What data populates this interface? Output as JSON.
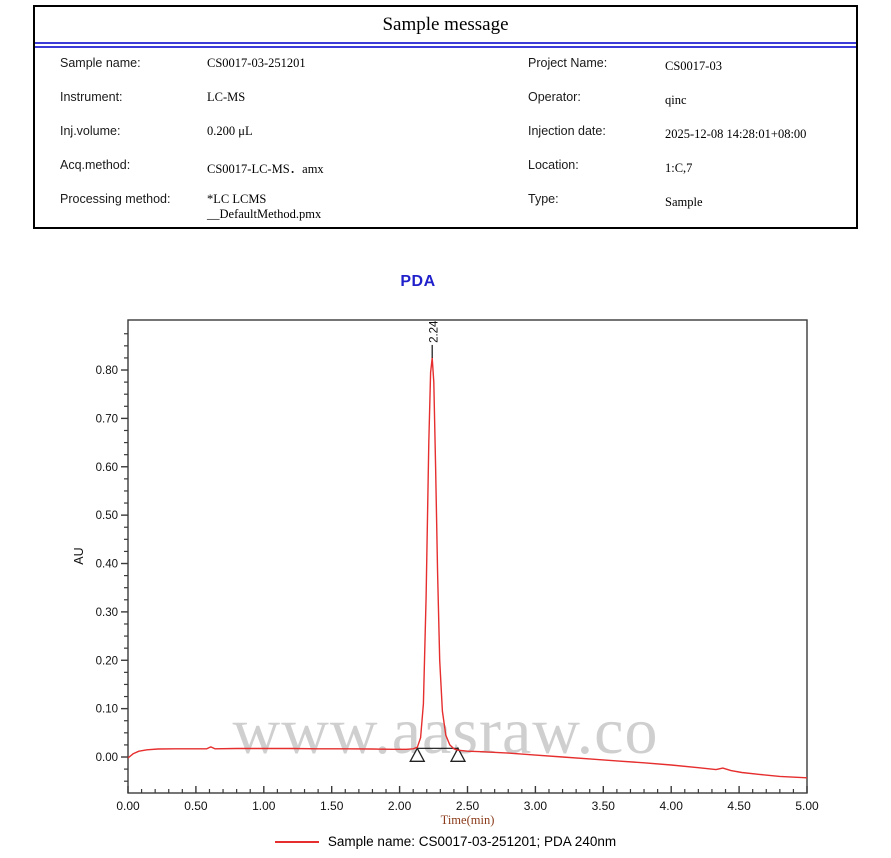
{
  "header_table": {
    "title": "Sample message",
    "rows": [
      {
        "left_label": "Sample name:",
        "left_value": "CS0017-03-251201",
        "right_label": "Project Name:",
        "right_value": "CS0017-03"
      },
      {
        "left_label": "Instrument:",
        "left_value": "LC-MS",
        "right_label": "Operator:",
        "right_value": "qinc"
      },
      {
        "left_label": "Inj.volume:",
        "left_value": "0.200 μL",
        "right_label": "Injection date:",
        "right_value": "2025-12-08 14:28:01+08:00"
      },
      {
        "left_label": "Acq.method:",
        "left_value": "CS0017-LC-MS．amx",
        "right_label": "Location:",
        "right_value": "1:C,7"
      },
      {
        "left_label": "Processing method:",
        "left_value": "*LC LCMS\n__DefaultMethod.pmx",
        "right_label": "Type:",
        "right_value": "Sample"
      }
    ]
  },
  "chart_title": "PDA",
  "watermark": "www.aasraw.co",
  "legend": {
    "label": "Sample name: CS0017-03-251201;  PDA 240nm",
    "color": "#e62e2e"
  },
  "colors": {
    "trace_red": "#e62e2e",
    "accent_blue": "#2121cc",
    "rule_blue": "#3c3cd9",
    "axis": "#3a3a3a",
    "time_label_maroon": "#8b3a1a",
    "watermark_gray": "#c4c4c4"
  },
  "chart_data": {
    "type": "line",
    "title": "PDA",
    "xlabel": "Time(min)",
    "ylabel": "AU",
    "xlim": [
      0,
      5
    ],
    "ylim": [
      -0.0744,
      0.9034
    ],
    "xticks": [
      0.0,
      0.5,
      1.0,
      1.5,
      2.0,
      2.5,
      3.0,
      3.5,
      4.0,
      4.5,
      5.0
    ],
    "yticks": [
      0.0,
      0.1,
      0.2,
      0.3,
      0.4,
      0.5,
      0.6,
      0.7,
      0.8
    ],
    "x_minor_step": 0.1,
    "y_minor_step": 0.025,
    "grid": false,
    "legend_position": "bottom",
    "series": [
      {
        "name": "Sample name: CS0017-03-251201;  PDA 240nm",
        "color": "#e62e2e",
        "points": [
          [
            0.0,
            -0.002
          ],
          [
            0.04,
            0.007
          ],
          [
            0.08,
            0.012
          ],
          [
            0.14,
            0.015
          ],
          [
            0.22,
            0.0165
          ],
          [
            0.35,
            0.017
          ],
          [
            0.5,
            0.017
          ],
          [
            0.58,
            0.017
          ],
          [
            0.61,
            0.021
          ],
          [
            0.64,
            0.017
          ],
          [
            0.8,
            0.0175
          ],
          [
            1.0,
            0.0175
          ],
          [
            1.2,
            0.0175
          ],
          [
            1.4,
            0.017
          ],
          [
            1.6,
            0.017
          ],
          [
            1.8,
            0.0165
          ],
          [
            1.95,
            0.016
          ],
          [
            2.05,
            0.016
          ],
          [
            2.1,
            0.017
          ],
          [
            2.13,
            0.02
          ],
          [
            2.155,
            0.04
          ],
          [
            2.175,
            0.11
          ],
          [
            2.195,
            0.33
          ],
          [
            2.215,
            0.65
          ],
          [
            2.228,
            0.795
          ],
          [
            2.24,
            0.825
          ],
          [
            2.252,
            0.775
          ],
          [
            2.265,
            0.6
          ],
          [
            2.28,
            0.38
          ],
          [
            2.295,
            0.2
          ],
          [
            2.315,
            0.095
          ],
          [
            2.34,
            0.045
          ],
          [
            2.37,
            0.025
          ],
          [
            2.4,
            0.017
          ],
          [
            2.43,
            0.014
          ],
          [
            2.5,
            0.012
          ],
          [
            2.6,
            0.011
          ],
          [
            2.8,
            0.008
          ],
          [
            3.0,
            0.004
          ],
          [
            3.2,
            0.0
          ],
          [
            3.4,
            -0.004
          ],
          [
            3.6,
            -0.008
          ],
          [
            3.8,
            -0.012
          ],
          [
            4.0,
            -0.0165
          ],
          [
            4.2,
            -0.022
          ],
          [
            4.33,
            -0.026
          ],
          [
            4.38,
            -0.023
          ],
          [
            4.44,
            -0.028
          ],
          [
            4.52,
            -0.032
          ],
          [
            4.65,
            -0.036
          ],
          [
            4.8,
            -0.04
          ],
          [
            5.0,
            -0.043
          ]
        ]
      }
    ],
    "peaks": [
      {
        "label": "2.24",
        "time": 2.24,
        "apex_au": 0.825,
        "start_time": 2.13,
        "end_time": 2.43,
        "baseline_au": 0.018
      }
    ]
  }
}
